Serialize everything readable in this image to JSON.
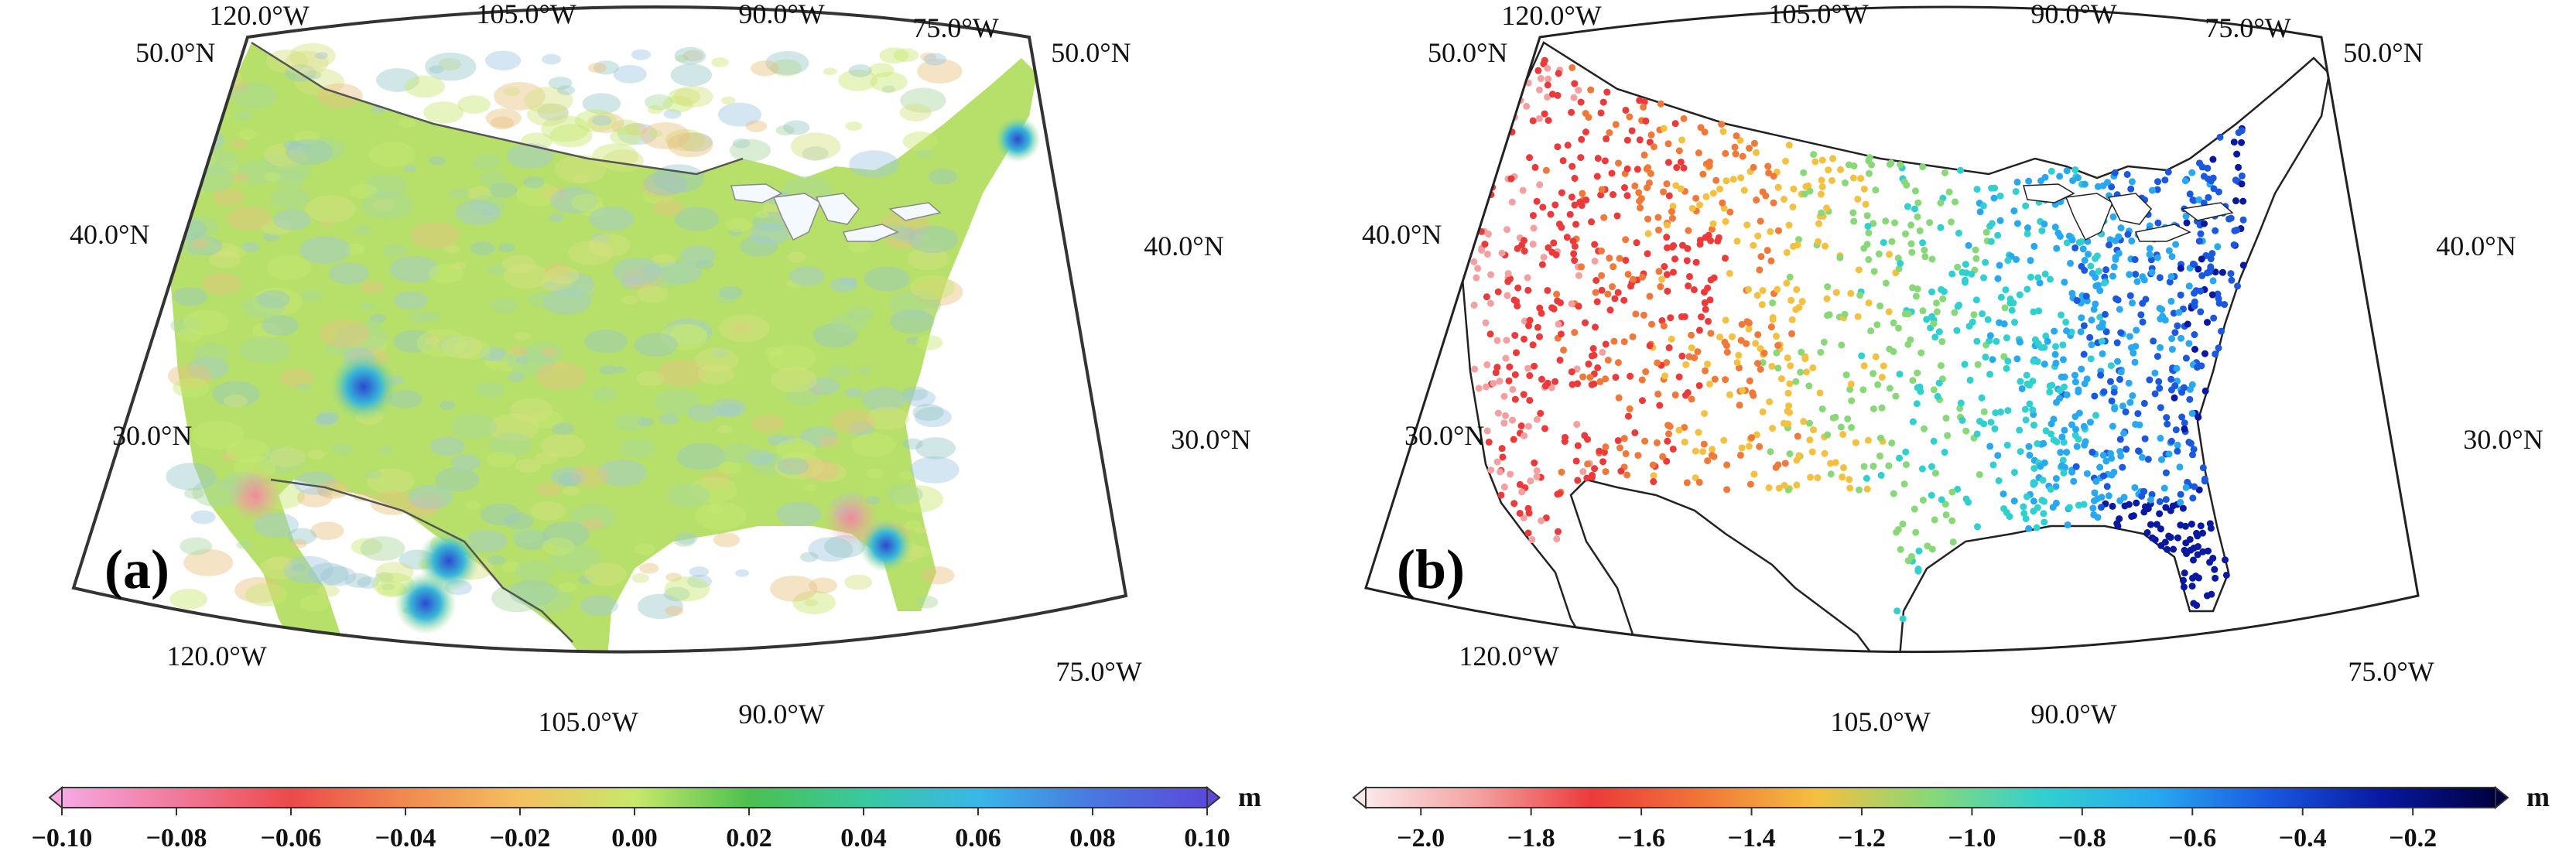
{
  "panels": [
    {
      "label": "(a)",
      "lat_labels": [
        "50.0°N",
        "40.0°N",
        "30.0°N"
      ],
      "lon_labels": [
        "120.0°W",
        "105.0°W",
        "90.0°W",
        "75.0°W"
      ],
      "field": "continuous",
      "colorbar": {
        "unit": "m",
        "min": -0.1,
        "max": 0.1,
        "ticks": [
          "-0.10",
          "-0.08",
          "-0.06",
          "-0.04",
          "-0.02",
          "0.00",
          "0.02",
          "0.04",
          "0.06",
          "0.08",
          "0.10"
        ],
        "colors": [
          "#f6a8e3",
          "#f07a9a",
          "#ec4a4a",
          "#f08a50",
          "#f4c060",
          "#c8e86a",
          "#4cc050",
          "#38c8a0",
          "#38b8e8",
          "#4a78e0",
          "#5a4ad8"
        ]
      }
    },
    {
      "label": "(b)",
      "lat_labels": [
        "50.0°N",
        "40.0°N",
        "30.0°N"
      ],
      "lon_labels": [
        "120.0°W",
        "105.0°W",
        "90.0°W",
        "75.0°W"
      ],
      "field": "stations",
      "colorbar": {
        "unit": "m",
        "min": -2.1,
        "max": -0.05,
        "ticks": [
          "-2.0",
          "-1.8",
          "-1.6",
          "-1.4",
          "-1.2",
          "-1.0",
          "-0.8",
          "-0.6",
          "-0.4",
          "-0.2"
        ],
        "colors": [
          "#fbe8e8",
          "#f4a0a0",
          "#ec3a3a",
          "#f07838",
          "#f4c040",
          "#88d878",
          "#30d0d0",
          "#28a8f0",
          "#1a58e0",
          "#0818a0",
          "#000040"
        ]
      }
    }
  ]
}
